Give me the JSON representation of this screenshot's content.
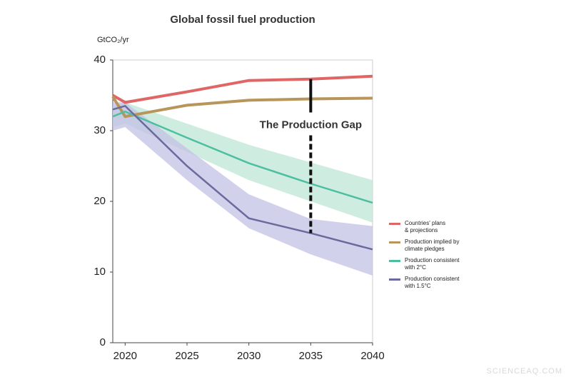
{
  "chart_data": {
    "type": "line",
    "title": "Global fossil fuel production",
    "y_label": "GtCO₂/yr",
    "annotation": "The Production Gap",
    "watermark": "SCIENCEAQ.COM",
    "x": [
      2019,
      2020,
      2025,
      2030,
      2035,
      2040
    ],
    "xlim": [
      2019,
      2040
    ],
    "xticks": [
      2020,
      2025,
      2030,
      2035,
      2040
    ],
    "ylim": [
      0,
      40
    ],
    "yticks": [
      0,
      10,
      20,
      30,
      40
    ],
    "series": [
      {
        "name": "Countries' plans\n& projections",
        "color": "#e06666",
        "values": [
          35,
          34,
          35.5,
          37.1,
          37.3,
          37.7
        ]
      },
      {
        "name": "Production implied by\n climate pledges",
        "color": "#b8955a",
        "values": [
          34.8,
          32,
          33.6,
          34.3,
          34.5,
          34.6
        ]
      },
      {
        "name": "Production consistent\nwith 2°C",
        "color": "#4dbfa0",
        "band_color": "#bfe6d6",
        "values": [
          32,
          32.7,
          29,
          25.4,
          22.5,
          19.8
        ],
        "lower": [
          30.5,
          31,
          27,
          23,
          20,
          17
        ],
        "upper": [
          33.5,
          34,
          31,
          28,
          25.5,
          23
        ]
      },
      {
        "name": "Production consistent\nwith 1.5°C",
        "color": "#6b6a9e",
        "band_color": "#c3c2e6",
        "values": [
          33,
          33.5,
          25,
          17.6,
          15.5,
          13.2
        ],
        "lower": [
          30,
          30.5,
          23,
          16.2,
          12.5,
          9.5
        ],
        "upper": [
          34,
          34,
          27.5,
          21,
          17.5,
          16.5
        ]
      }
    ]
  }
}
